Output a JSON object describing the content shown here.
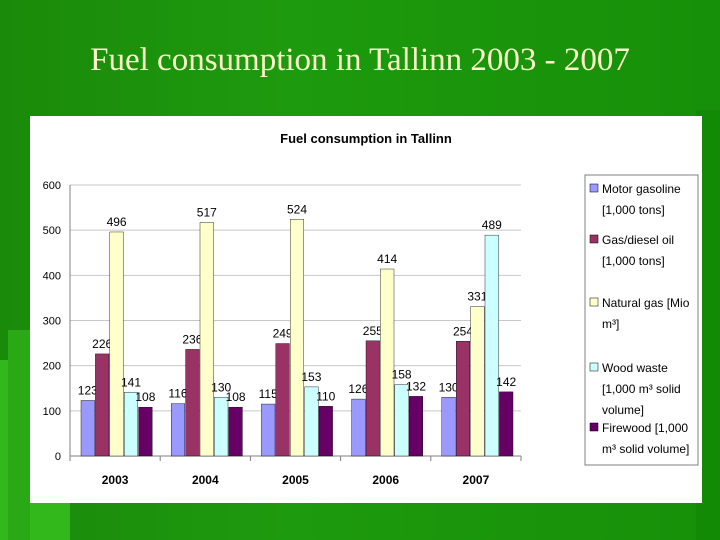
{
  "slide": {
    "title": "Fuel consumption in Tallinn 2003 - 2007"
  },
  "chart_data": {
    "type": "bar",
    "title": "Fuel consumption in Tallinn",
    "categories": [
      "2003",
      "2004",
      "2005",
      "2006",
      "2007"
    ],
    "ylim": [
      0,
      600
    ],
    "yticks": [
      0,
      100,
      200,
      300,
      400,
      500,
      600
    ],
    "grid": true,
    "legend_position": "right",
    "series": [
      {
        "name": "Motor gasoline [1,000 tons]",
        "legend_lines": [
          "Motor gasoline",
          "[1,000 tons]"
        ],
        "color": "#9999ff",
        "values": [
          123,
          116,
          115,
          126,
          130
        ]
      },
      {
        "name": "Gas/diesel oil [1,000 tons]",
        "legend_lines": [
          "Gas/diesel oil",
          "[1,000 tons]"
        ],
        "color": "#993366",
        "values": [
          226,
          236,
          249,
          255,
          254
        ]
      },
      {
        "name": "Natural gas [Mio m³]",
        "legend_lines": [
          "Natural gas [Mio",
          "m³]"
        ],
        "color": "#ffffcc",
        "values": [
          496,
          517,
          524,
          414,
          331
        ]
      },
      {
        "name": "Wood waste [1,000 m³ solid volume]",
        "legend_lines": [
          "Wood  waste",
          "[1,000 m³ solid",
          "volume]"
        ],
        "color": "#ccffff",
        "values": [
          141,
          130,
          153,
          158,
          489
        ]
      },
      {
        "name": "Firewood [1,000 m³ solid volume]",
        "legend_lines": [
          "Firewood [1,000",
          "m³ solid volume]"
        ],
        "color": "#660066",
        "values": [
          108,
          108,
          110,
          132,
          142
        ]
      }
    ]
  }
}
